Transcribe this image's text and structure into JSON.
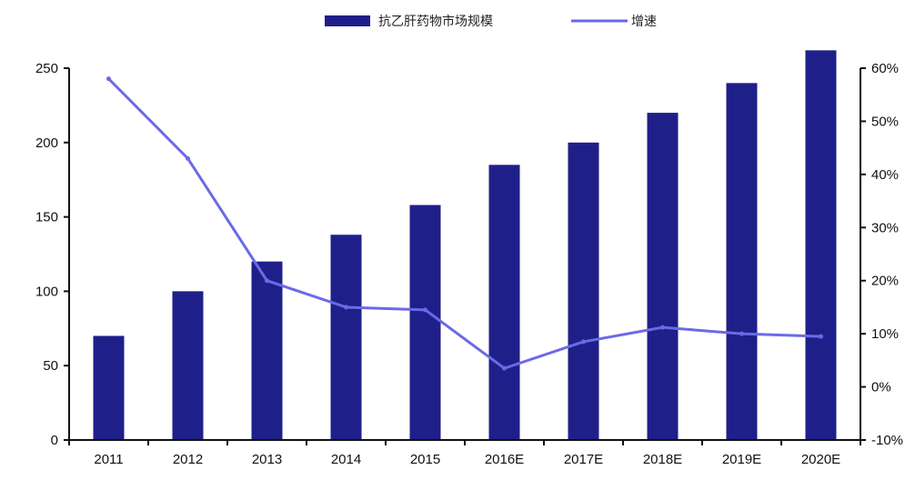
{
  "chart_data": {
    "type": "bar",
    "title": "",
    "xlabel": "",
    "ylabel": "",
    "categories": [
      "2011",
      "2012",
      "2013",
      "2014",
      "2015",
      "2016E",
      "2017E",
      "2018E",
      "2019E",
      "2020E"
    ],
    "series": [
      {
        "name": "抗乙肝药物市场规模",
        "kind": "bar",
        "axis": "left",
        "values": [
          70,
          100,
          120,
          138,
          158,
          185,
          200,
          220,
          240,
          262
        ]
      },
      {
        "name": "增速",
        "kind": "line",
        "axis": "right",
        "values": [
          0.58,
          0.43,
          0.2,
          0.15,
          0.145,
          0.035,
          0.085,
          0.112,
          0.1,
          0.095
        ]
      }
    ],
    "y_left": {
      "ylim": [
        0,
        250
      ],
      "ticks": [
        "0",
        "50",
        "100",
        "150",
        "200",
        "250"
      ]
    },
    "y_right": {
      "ylim": [
        -0.1,
        0.6
      ],
      "ticks": [
        "-10%",
        "0%",
        "10%",
        "20%",
        "30%",
        "40%",
        "50%",
        "60%"
      ]
    },
    "legend_position": "top-center",
    "grid": false,
    "colors": {
      "bar": "#1f1f8a",
      "line": "#6a6ae8"
    }
  }
}
